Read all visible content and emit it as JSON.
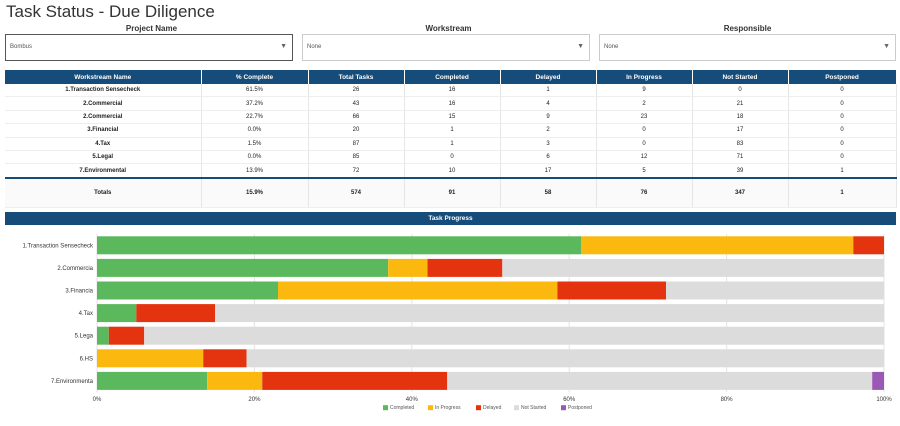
{
  "page": {
    "title": "Task Status - Due Diligence"
  },
  "filters": [
    {
      "label": "Project Name",
      "value": "Bombus"
    },
    {
      "label": "Workstream",
      "value": "None"
    },
    {
      "label": "Responsible",
      "value": "None"
    }
  ],
  "table": {
    "headers": [
      "Workstream Name",
      "% Complete",
      "Total Tasks",
      "Completed",
      "Delayed",
      "In Progress",
      "Not Started",
      "Postponed"
    ],
    "rows": [
      [
        "1.Transaction Sensecheck",
        "61.5%",
        "26",
        "16",
        "1",
        "9",
        "0",
        "0"
      ],
      [
        "2.Commercial",
        "37.2%",
        "43",
        "16",
        "4",
        "2",
        "21",
        "0"
      ],
      [
        "2.Commercial",
        "22.7%",
        "66",
        "15",
        "9",
        "23",
        "18",
        "0"
      ],
      [
        "3.Financial",
        "0.0%",
        "20",
        "1",
        "2",
        "0",
        "17",
        "0"
      ],
      [
        "4.Tax",
        "1.5%",
        "87",
        "1",
        "3",
        "0",
        "83",
        "0"
      ],
      [
        "5.Legal",
        "0.0%",
        "85",
        "0",
        "6",
        "12",
        "71",
        "0"
      ],
      [
        "7.Environmental",
        "13.9%",
        "72",
        "10",
        "17",
        "5",
        "39",
        "1"
      ]
    ],
    "totals": [
      "Totals",
      "15.9%",
      "574",
      "91",
      "58",
      "76",
      "347",
      "1"
    ]
  },
  "chart_header": "Task Progress",
  "colors": {
    "completed": "#5cb85c",
    "in_progress": "#fbb910",
    "delayed": "#e3340f",
    "not_started": "#dcdcdc",
    "postponed": "#9b59b6",
    "header_blue": "#154c79"
  },
  "chart_data": {
    "type": "bar",
    "orientation": "horizontal",
    "stacked": true,
    "title": "Task Progress",
    "categories": [
      "1.Transaction Sensecheck",
      "2.Commercia",
      "3.Financia",
      "4.Tax",
      "5.Lega",
      "6.HS",
      "7.Environmenta"
    ],
    "series": [
      {
        "name": "Completed",
        "color": "#5cb85c",
        "values": [
          61.5,
          37,
          23,
          5,
          1.5,
          0,
          14
        ]
      },
      {
        "name": "In Progress",
        "color": "#fbb910",
        "values": [
          34.6,
          5,
          35.5,
          0,
          0,
          13.5,
          7
        ]
      },
      {
        "name": "Delayed",
        "color": "#e3340f",
        "values": [
          3.9,
          9.5,
          13.8,
          10,
          4.5,
          5.5,
          23.5
        ]
      },
      {
        "name": "Not Started",
        "color": "#dcdcdc",
        "values": [
          0,
          48.5,
          27.7,
          85,
          94,
          81,
          54
        ]
      },
      {
        "name": "Postponed",
        "color": "#9b59b6",
        "values": [
          0,
          0,
          0,
          0,
          0,
          0,
          1.5
        ]
      }
    ],
    "xlim": [
      0,
      100
    ],
    "xticks": [
      "0%",
      "20%",
      "40%",
      "60%",
      "80%",
      "100%"
    ],
    "grid": true,
    "legend_position": "bottom"
  }
}
